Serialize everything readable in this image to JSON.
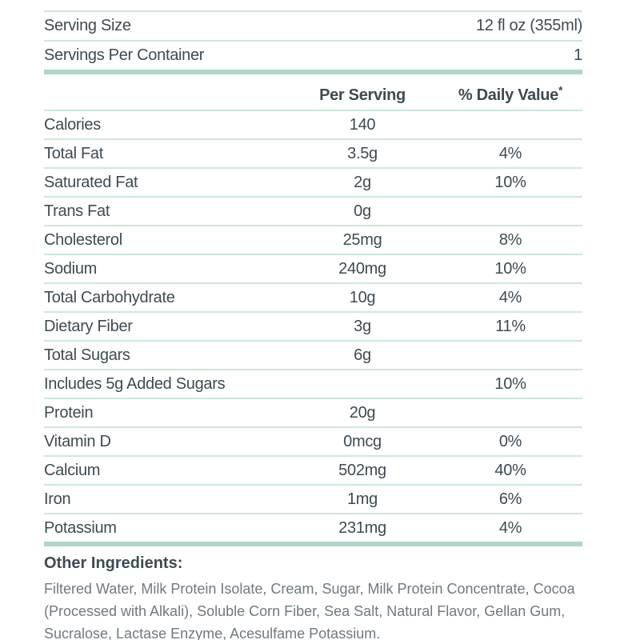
{
  "serving_info": {
    "rows": [
      {
        "label": "Serving Size",
        "value": "12 fl oz (355ml)"
      },
      {
        "label": "Servings Per Container",
        "value": "1"
      }
    ]
  },
  "nutrition_table": {
    "header": {
      "per_serving": "Per Serving",
      "daily_value": "% Daily Value",
      "asterisk": "*"
    },
    "rows": [
      {
        "label": "Calories",
        "amount": "140",
        "dv": ""
      },
      {
        "label": "Total Fat",
        "amount": "3.5g",
        "dv": "4%"
      },
      {
        "label": "Saturated Fat",
        "amount": "2g",
        "dv": "10%"
      },
      {
        "label": "Trans Fat",
        "amount": "0g",
        "dv": ""
      },
      {
        "label": "Cholesterol",
        "amount": "25mg",
        "dv": "8%"
      },
      {
        "label": "Sodium",
        "amount": "240mg",
        "dv": "10%"
      },
      {
        "label": "Total Carbohydrate",
        "amount": "10g",
        "dv": "4%"
      },
      {
        "label": "Dietary Fiber",
        "amount": "3g",
        "dv": "11%"
      },
      {
        "label": "Total Sugars",
        "amount": "6g",
        "dv": ""
      },
      {
        "label": "Includes 5g Added Sugars",
        "amount": "",
        "dv": "10%"
      },
      {
        "label": "Protein",
        "amount": "20g",
        "dv": ""
      },
      {
        "label": "Vitamin D",
        "amount": "0mcg",
        "dv": "0%"
      },
      {
        "label": "Calcium",
        "amount": "502mg",
        "dv": "40%"
      },
      {
        "label": "Iron",
        "amount": "1mg",
        "dv": "6%"
      },
      {
        "label": "Potassium",
        "amount": "231mg",
        "dv": "4%"
      }
    ]
  },
  "other_ingredients": {
    "heading": "Other Ingredients:",
    "text": "Filtered Water, Milk Protein Isolate, Cream, Sugar, Milk Protein Concentrate, Cocoa (Processed with Alkali), Soluble Corn Fiber, Sea Salt, Natural Flavor, Gellan Gum, Sucralose, Lactase Enzyme, Acesulfame Potassium."
  },
  "colors": {
    "text_primary": "#3d4b54",
    "text_secondary": "#6e7a82",
    "line_thin": "#cde7de",
    "line_thick": "#b0d6c9",
    "background": "#ffffff"
  }
}
